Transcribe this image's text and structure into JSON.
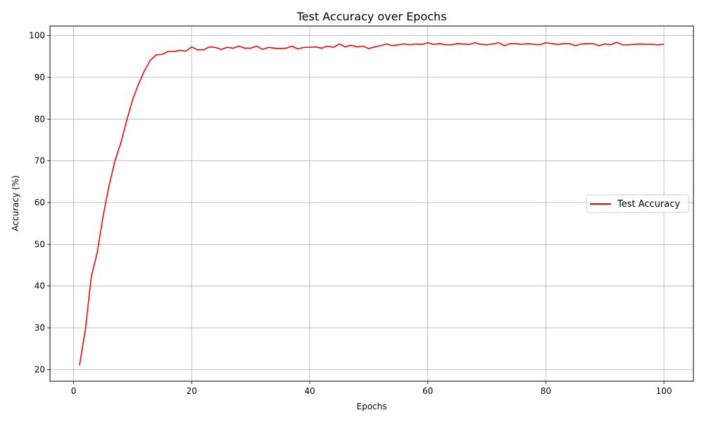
{
  "chart_data": {
    "type": "line",
    "title": "Test Accuracy over Epochs",
    "xlabel": "Epochs",
    "ylabel": "Accuracy (%)",
    "xlim": [
      -4,
      105
    ],
    "ylim": [
      17.2,
      102.3
    ],
    "xticks": [
      0,
      20,
      40,
      60,
      80,
      100
    ],
    "yticks": [
      20,
      30,
      40,
      50,
      60,
      70,
      80,
      90,
      100
    ],
    "grid": true,
    "legend_position": "center-right",
    "series": [
      {
        "name": "Test Accuracy",
        "color": "#ff0000",
        "x": [
          1,
          2,
          3,
          4,
          5,
          6,
          7,
          8,
          9,
          10,
          11,
          12,
          13,
          14,
          15,
          16,
          17,
          18,
          19,
          20,
          21,
          22,
          23,
          24,
          25,
          26,
          27,
          28,
          29,
          30,
          31,
          32,
          33,
          34,
          35,
          36,
          37,
          38,
          39,
          40,
          41,
          42,
          43,
          44,
          45,
          46,
          47,
          48,
          49,
          50,
          51,
          52,
          53,
          54,
          55,
          56,
          57,
          58,
          59,
          60,
          61,
          62,
          63,
          64,
          65,
          66,
          67,
          68,
          69,
          70,
          71,
          72,
          73,
          74,
          75,
          76,
          77,
          78,
          79,
          80,
          81,
          82,
          83,
          84,
          85,
          86,
          87,
          88,
          89,
          90,
          91,
          92,
          93,
          94,
          95,
          96,
          97,
          98,
          99,
          100
        ],
        "values": [
          21.0,
          29.6,
          42.3,
          48.0,
          56.8,
          64.0,
          70.0,
          74.3,
          79.7,
          84.7,
          88.4,
          91.6,
          94.1,
          95.4,
          95.5,
          96.2,
          96.2,
          96.5,
          96.3,
          97.3,
          96.6,
          96.6,
          97.3,
          97.2,
          96.7,
          97.2,
          97.0,
          97.5,
          97.0,
          97.0,
          97.5,
          96.7,
          97.2,
          97.0,
          96.9,
          97.0,
          97.5,
          96.8,
          97.2,
          97.2,
          97.3,
          97.0,
          97.5,
          97.2,
          98.0,
          97.3,
          97.7,
          97.3,
          97.5,
          96.9,
          97.3,
          97.6,
          98.0,
          97.6,
          97.8,
          98.0,
          97.8,
          98.0,
          97.9,
          98.3,
          97.9,
          98.1,
          97.8,
          97.8,
          98.1,
          98.0,
          97.9,
          98.3,
          97.9,
          97.8,
          98.0,
          98.3,
          97.6,
          98.1,
          98.1,
          97.9,
          98.1,
          97.9,
          97.8,
          98.3,
          98.1,
          97.9,
          98.1,
          98.1,
          97.6,
          98.0,
          98.1,
          98.1,
          97.6,
          98.0,
          97.8,
          98.4,
          97.8,
          97.8,
          97.9,
          98.0,
          97.9,
          97.9,
          97.8,
          97.9
        ]
      }
    ]
  }
}
